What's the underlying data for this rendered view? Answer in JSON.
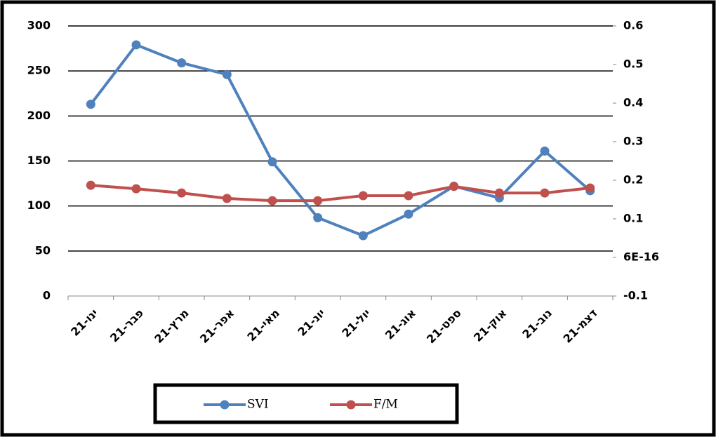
{
  "chart_data": {
    "type": "line",
    "categories": [
      "ינו-21",
      "פבר-21",
      "מרץ-21",
      "אפר-21",
      "מאי-21",
      "יונ-21",
      "יול-21",
      "אוג-21",
      "ספט-21",
      "אוק-21",
      "נוב-21",
      "דצמ-21"
    ],
    "series": [
      {
        "name": "SVI",
        "color": "#4f81bd",
        "values": [
          213,
          279,
          259,
          246,
          149,
          87,
          67,
          91,
          122,
          109,
          161,
          117
        ]
      },
      {
        "name": "F/M",
        "color": "#c0504d",
        "axis": "y2",
        "values": [
          0.187,
          0.178,
          0.167,
          0.153,
          0.147,
          0.147,
          0.16,
          0.16,
          0.184,
          0.167,
          0.167,
          0.18
        ]
      }
    ],
    "ylim": [
      0,
      300
    ],
    "yticks": [
      0,
      50,
      100,
      150,
      200,
      250,
      300
    ],
    "y2lim": [
      -0.1,
      0.6
    ],
    "y2ticks": [
      -0.1,
      {
        "value": 6e-16,
        "label": "6E-16"
      },
      0.1,
      0.2,
      0.3,
      0.4,
      0.5,
      0.6
    ],
    "grid": true,
    "legend": "bottom"
  }
}
